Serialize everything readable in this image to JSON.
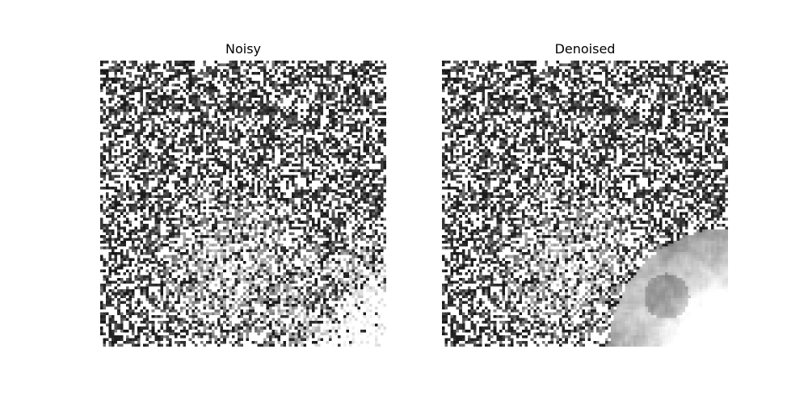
{
  "figure": {
    "panels": [
      {
        "title": "Noisy"
      },
      {
        "title": "Denoised"
      }
    ]
  }
}
